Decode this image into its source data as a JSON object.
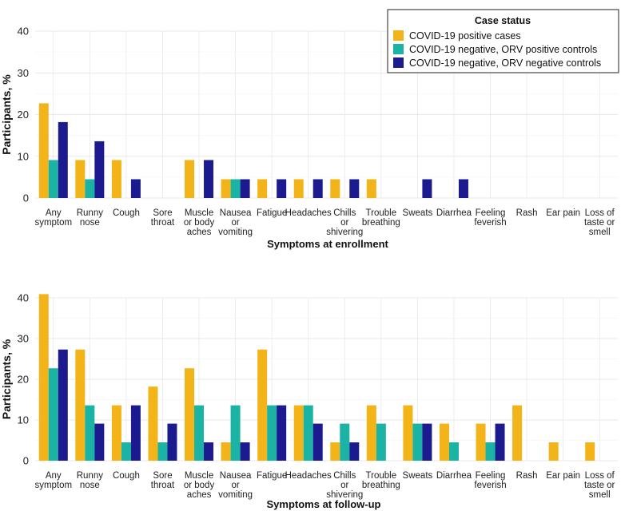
{
  "legend": {
    "title": "Case status",
    "position": "top-right",
    "entries": [
      {
        "label": "COVID-19 positive cases",
        "color": "#F2B418"
      },
      {
        "label": "COVID-19 negative, ORV positive controls",
        "color": "#1BB3A4"
      },
      {
        "label": "COVID-19 negative, ORV negative controls",
        "color": "#1B1B8F"
      }
    ]
  },
  "chart_data": [
    {
      "type": "bar",
      "title": "",
      "xlabel": "Symptoms at enrollment",
      "ylabel": "Participants, %",
      "ylim": [
        0,
        40
      ],
      "yticks": [
        0,
        10,
        20,
        30,
        40
      ],
      "grid": true,
      "categories": [
        [
          "Any",
          "symptom"
        ],
        [
          "Runny",
          "nose"
        ],
        [
          "Cough"
        ],
        [
          "Sore",
          "throat"
        ],
        [
          "Muscle",
          "or body",
          "aches"
        ],
        [
          "Nausea",
          "or",
          "vomiting"
        ],
        [
          "Fatigue"
        ],
        [
          "Headaches"
        ],
        [
          "Chills",
          "or",
          "shivering"
        ],
        [
          "Trouble",
          "breathing"
        ],
        [
          "Sweats"
        ],
        [
          "Diarrhea"
        ],
        [
          "Feeling",
          "feverish"
        ],
        [
          "Rash"
        ],
        [
          "Ear pain"
        ],
        [
          "Loss of",
          "taste or",
          "smell"
        ]
      ],
      "series": [
        {
          "name": "COVID-19 positive cases",
          "values": [
            22.7,
            9.1,
            9.1,
            0,
            9.1,
            4.5,
            4.5,
            4.5,
            4.5,
            4.5,
            0,
            0,
            0,
            0,
            0,
            0
          ]
        },
        {
          "name": "COVID-19 negative, ORV positive controls",
          "values": [
            9.1,
            4.5,
            0,
            0,
            0,
            4.5,
            0,
            0,
            0,
            0,
            0,
            0,
            0,
            0,
            0,
            0
          ]
        },
        {
          "name": "COVID-19 negative, ORV negative controls",
          "values": [
            18.2,
            13.6,
            4.5,
            0,
            9.1,
            4.5,
            4.5,
            4.5,
            4.5,
            0,
            4.5,
            4.5,
            0,
            0,
            0,
            0
          ]
        }
      ]
    },
    {
      "type": "bar",
      "title": "",
      "xlabel": "Symptoms at follow-up",
      "ylabel": "Participants, %",
      "ylim": [
        0,
        40
      ],
      "yticks": [
        0,
        10,
        20,
        30,
        40
      ],
      "grid": true,
      "categories": [
        [
          "Any",
          "symptom"
        ],
        [
          "Runny",
          "nose"
        ],
        [
          "Cough"
        ],
        [
          "Sore",
          "throat"
        ],
        [
          "Muscle",
          "or body",
          "aches"
        ],
        [
          "Nausea",
          "or",
          "vomiting"
        ],
        [
          "Fatigue"
        ],
        [
          "Headaches"
        ],
        [
          "Chills",
          "or",
          "shivering"
        ],
        [
          "Trouble",
          "breathing"
        ],
        [
          "Sweats"
        ],
        [
          "Diarrhea"
        ],
        [
          "Feeling",
          "feverish"
        ],
        [
          "Rash"
        ],
        [
          "Ear pain"
        ],
        [
          "Loss of",
          "taste or",
          "smell"
        ]
      ],
      "series": [
        {
          "name": "COVID-19 positive cases",
          "values": [
            40.9,
            27.3,
            13.6,
            18.2,
            22.7,
            4.5,
            27.3,
            13.6,
            4.5,
            13.6,
            13.6,
            9.1,
            9.1,
            13.6,
            4.5,
            4.5
          ]
        },
        {
          "name": "COVID-19 negative, ORV positive controls",
          "values": [
            22.7,
            13.6,
            4.5,
            4.5,
            13.6,
            13.6,
            13.6,
            13.6,
            9.1,
            9.1,
            9.1,
            4.5,
            4.5,
            0,
            0,
            0
          ]
        },
        {
          "name": "COVID-19 negative, ORV negative controls",
          "values": [
            27.3,
            9.1,
            13.6,
            9.1,
            4.5,
            4.5,
            13.6,
            9.1,
            4.5,
            0,
            9.1,
            0,
            9.1,
            0,
            0,
            0
          ]
        }
      ]
    }
  ]
}
